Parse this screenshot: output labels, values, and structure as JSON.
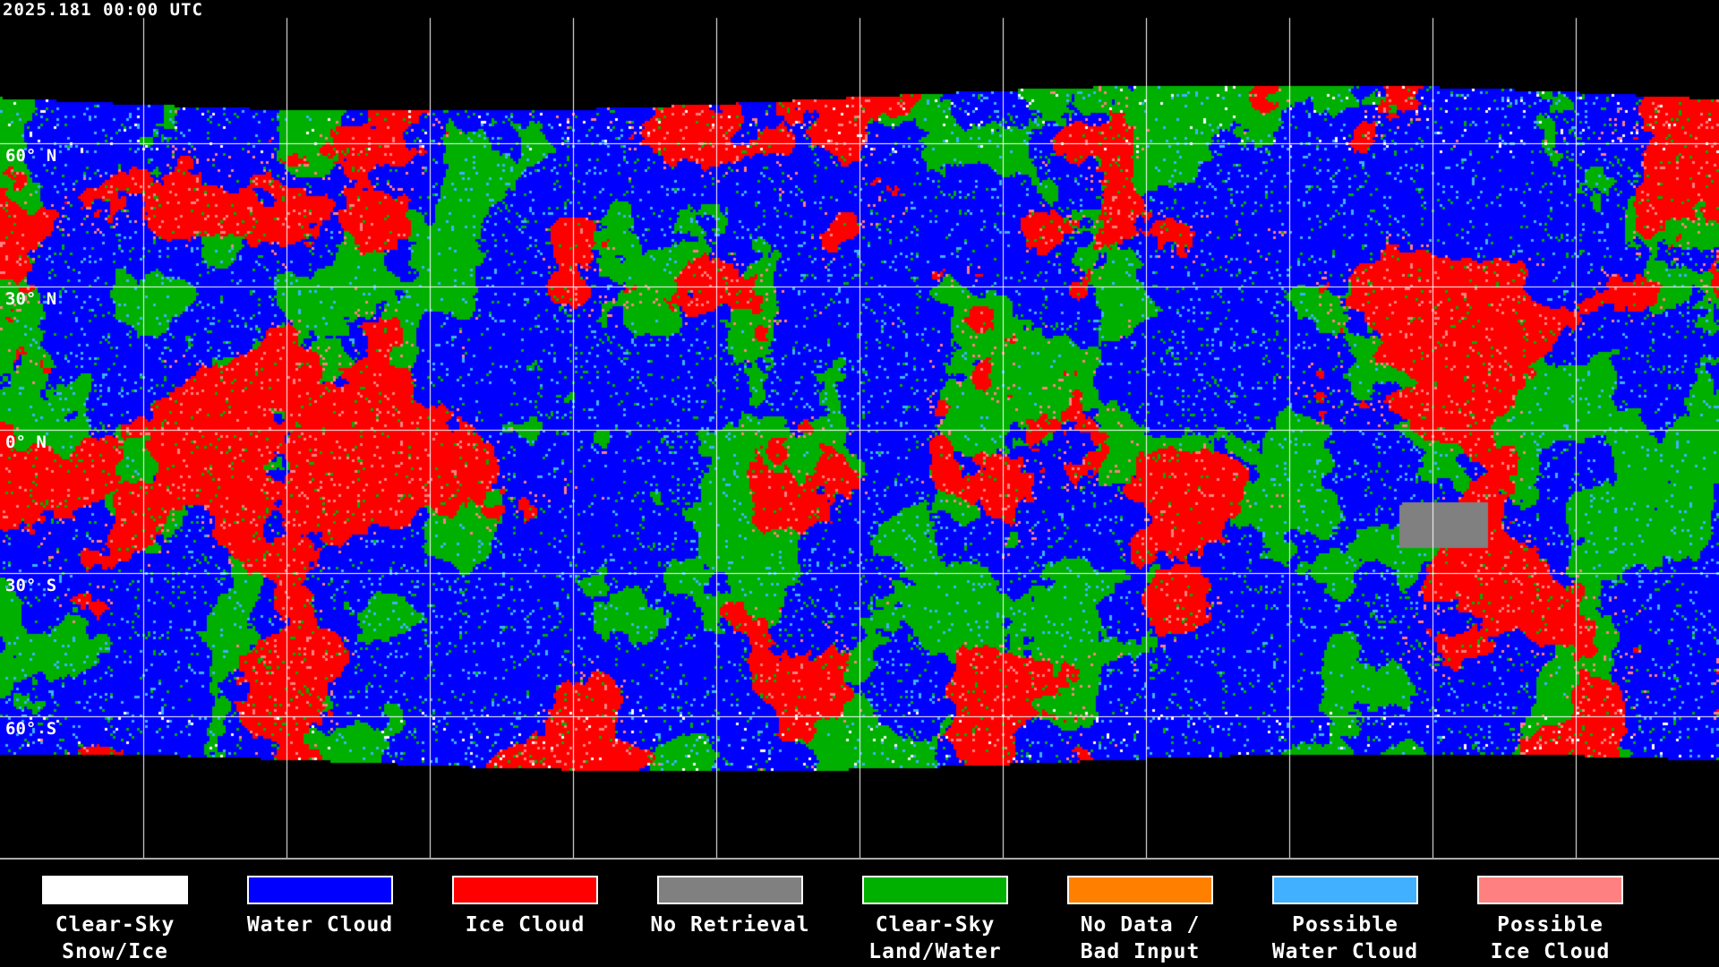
{
  "timestamp": "2025.181 00:00 UTC",
  "lat_labels": [
    "60° N",
    "30° N",
    "0° N",
    "30° S",
    "60° S"
  ],
  "legend": [
    {
      "label": "Clear-Sky\nSnow/Ice",
      "color": "#ffffff"
    },
    {
      "label": "Water Cloud",
      "color": "#0000ff"
    },
    {
      "label": "Ice Cloud",
      "color": "#ff0000"
    },
    {
      "label": "No Retrieval",
      "color": "#808080"
    },
    {
      "label": "Clear-Sky\nLand/Water",
      "color": "#00b000"
    },
    {
      "label": "No Data /\nBad Input",
      "color": "#ff8000"
    },
    {
      "label": "Possible\nWater Cloud",
      "color": "#40b0ff"
    },
    {
      "label": "Possible\nIce Cloud",
      "color": "#ff8080"
    }
  ],
  "map": {
    "projection": "equirectangular",
    "gridline_spacing_deg": 30,
    "gridline_color": "#ffffff",
    "coastline_color": "#ffffff",
    "background": "#000000"
  }
}
